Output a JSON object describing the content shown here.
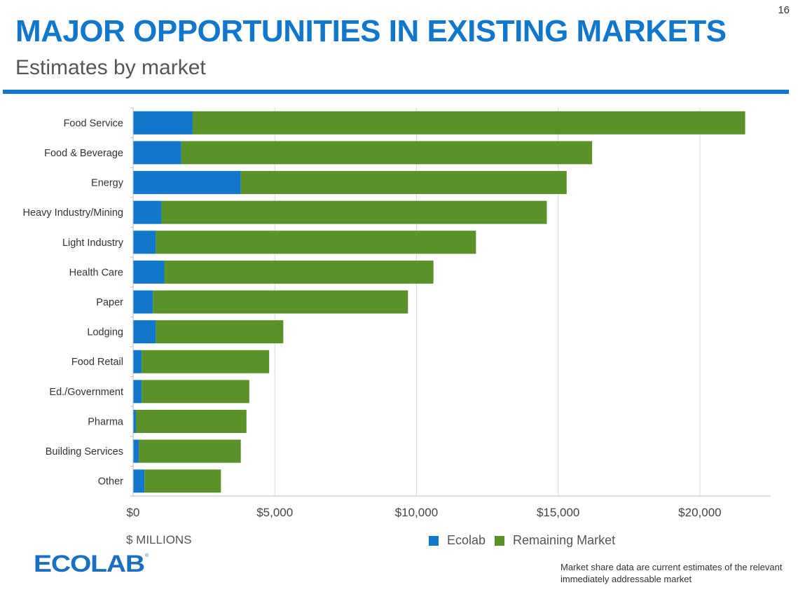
{
  "page_number": "16",
  "title": "MAJOR OPPORTUNITIES IN EXISTING MARKETS",
  "subtitle": "Estimates by market",
  "units_label": "$ MILLIONS",
  "legend": [
    {
      "label": "Ecolab",
      "color": "#1177cc"
    },
    {
      "label": "Remaining Market",
      "color": "#5a9229"
    }
  ],
  "footnote": "Market share data are current estimates of the relevant immediately addressable market",
  "logo_text": "ECOLAB",
  "colors": {
    "accent": "#1177cc",
    "ecolab": "#1177cc",
    "remaining": "#5a9229"
  },
  "chart_data": {
    "type": "bar",
    "orientation": "horizontal",
    "stacked": true,
    "categories": [
      "Food Service",
      "Food & Beverage",
      "Energy",
      "Heavy Industry/Mining",
      "Light Industry",
      "Health Care",
      "Paper",
      "Lodging",
      "Food Retail",
      "Ed./Government",
      "Pharma",
      "Building Services",
      "Other"
    ],
    "series": [
      {
        "name": "Ecolab",
        "values": [
          2100,
          1700,
          3800,
          1000,
          800,
          1100,
          700,
          800,
          300,
          300,
          100,
          200,
          400
        ]
      },
      {
        "name": "Remaining Market",
        "values": [
          19500,
          14500,
          11500,
          13600,
          11300,
          9500,
          9000,
          4500,
          4500,
          3800,
          3900,
          3600,
          2700
        ]
      }
    ],
    "xlim": [
      0,
      22500
    ],
    "xticks": [
      0,
      5000,
      10000,
      15000,
      20000
    ],
    "xtick_labels": [
      "$0",
      "$5,000",
      "$10,000",
      "$15,000",
      "$20,000"
    ],
    "grid": "vertical",
    "legend_position": "bottom"
  }
}
